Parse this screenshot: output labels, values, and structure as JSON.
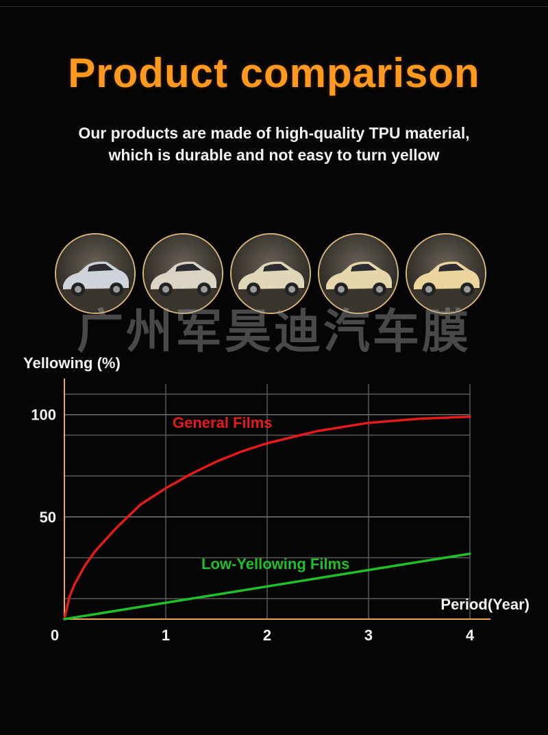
{
  "header": {
    "title": "Product comparison",
    "subtitle_line1": "Our products are made of high-quality TPU material,",
    "subtitle_line2": "which is durable and not easy to turn yellow"
  },
  "car_images": [
    {
      "name": "white-car-photo-1",
      "tint": "#cfd4da"
    },
    {
      "name": "white-car-photo-2",
      "tint": "#d9d4c4"
    },
    {
      "name": "white-car-photo-3",
      "tint": "#e0d6b8"
    },
    {
      "name": "white-car-photo-4",
      "tint": "#e6d6ab"
    },
    {
      "name": "white-car-photo-5",
      "tint": "#ecd59c"
    }
  ],
  "watermark": "广州军昊迪汽车膜",
  "colors": {
    "title": "#ff9a1f",
    "axis": "#f0a64a",
    "grid": "#5a5a5a",
    "general_series": "#e51a1a",
    "low_series": "#1fc02a"
  },
  "chart_data": {
    "type": "line",
    "ylabel": "Yellowing (%)",
    "xlabel": "Period(Year)",
    "xlim": [
      0,
      4
    ],
    "ylim": [
      0,
      115
    ],
    "x_ticks": [
      0,
      1,
      2,
      3,
      4
    ],
    "y_ticks": [
      50,
      100
    ],
    "grid": true,
    "series": [
      {
        "name": "General Films",
        "color": "#e51a1a",
        "x": [
          0,
          0.05,
          0.1,
          0.2,
          0.3,
          0.5,
          0.75,
          1,
          1.25,
          1.5,
          1.75,
          2,
          2.25,
          2.5,
          2.75,
          3,
          3.25,
          3.5,
          3.75,
          4
        ],
        "y": [
          0,
          11,
          17,
          26,
          33,
          44,
          56,
          64,
          71,
          77,
          82,
          86,
          89,
          92,
          94,
          96,
          97,
          98,
          98.5,
          99
        ]
      },
      {
        "name": "Low-Yellowing Films",
        "color": "#1fc02a",
        "x": [
          0,
          1,
          2,
          3,
          4
        ],
        "y": [
          0,
          8,
          16,
          24,
          32
        ]
      }
    ]
  }
}
